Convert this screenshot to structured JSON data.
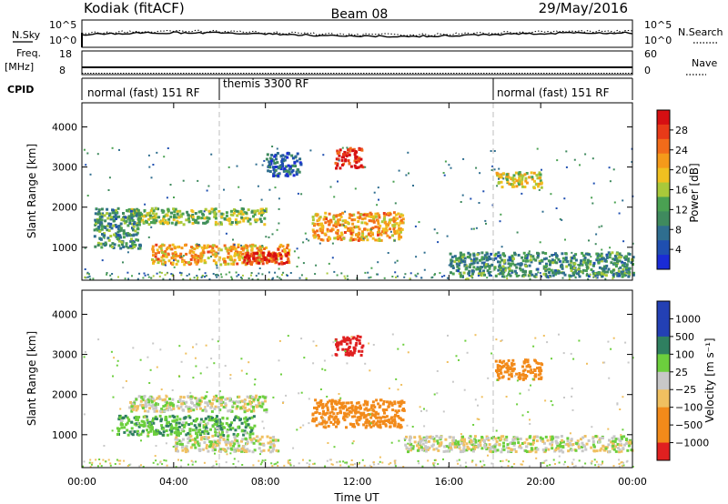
{
  "header": {
    "station": "Kodiak (fitACF)",
    "beam": "Beam 08",
    "date": "29/May/2016"
  },
  "noise_panel": {
    "left_label": "N.Sky",
    "left_ticks": [
      "10^5",
      "10^0"
    ],
    "right_ticks": [
      "10^5",
      "10^0"
    ],
    "right_label": "N.Search"
  },
  "freq_panel": {
    "left_label": "Freq.",
    "left_unit": "[MHz]",
    "left_ticks": [
      "18",
      "8"
    ],
    "right_ticks": [
      "60",
      "0"
    ],
    "right_label": "Nave"
  },
  "cpid_panel": {
    "label": "CPID",
    "segments": [
      "normal (fast) 151 RF",
      "themis 3300 RF",
      "normal (fast) 151 RF"
    ]
  },
  "power_panel": {
    "ylabel": "Slant Range [km]",
    "yticks": [
      "4000",
      "3000",
      "2000",
      "1000"
    ],
    "colorbar_label": "Power [dB]",
    "colorbar_ticks": [
      "28",
      "24",
      "20",
      "16",
      "12",
      "8",
      "4"
    ]
  },
  "velocity_panel": {
    "ylabel": "Slant Range [km]",
    "yticks": [
      "4000",
      "3000",
      "2000",
      "1000"
    ],
    "colorbar_label": "Velocity [m s⁻¹]",
    "colorbar_ticks": [
      "1000",
      "500",
      "100",
      "25",
      "−25",
      "−100",
      "−500",
      "−1000"
    ]
  },
  "xaxis": {
    "label": "Time UT",
    "ticks": [
      "00:00",
      "04:00",
      "08:00",
      "12:00",
      "16:00",
      "20:00",
      "00:00"
    ]
  },
  "chart_data": [
    {
      "type": "heatmap",
      "title": "Power",
      "xlabel": "Time UT",
      "ylabel": "Slant Range [km]",
      "xlim_hours": [
        0,
        24
      ],
      "ylim_km": [
        180,
        4600
      ],
      "colorbar_range_db": [
        0,
        30
      ],
      "mode_change_hours": [
        6,
        18
      ],
      "regions": [
        {
          "t": [
            3.0,
            9.0
          ],
          "range_km": [
            600,
            1100
          ],
          "value_db": 20
        },
        {
          "t": [
            7.0,
            9.0
          ],
          "range_km": [
            600,
            900
          ],
          "value_db": 28
        },
        {
          "t": [
            10.0,
            14.0
          ],
          "range_km": [
            1200,
            1900
          ],
          "value_db": 20
        },
        {
          "t": [
            2.0,
            8.0
          ],
          "range_km": [
            1600,
            2000
          ],
          "value_db": 14
        },
        {
          "t": [
            0.5,
            2.5
          ],
          "range_km": [
            1000,
            2000
          ],
          "value_db": 10
        },
        {
          "t": [
            18.0,
            20.0
          ],
          "range_km": [
            2500,
            2900
          ],
          "value_db": 16
        },
        {
          "t": [
            16.0,
            24.0
          ],
          "range_km": [
            300,
            900
          ],
          "value_db": 10
        },
        {
          "t": [
            8.0,
            9.5
          ],
          "range_km": [
            2800,
            3400
          ],
          "value_db": 6
        },
        {
          "t": [
            11.0,
            12.2
          ],
          "range_km": [
            3000,
            3500
          ],
          "value_db": 28
        }
      ]
    },
    {
      "type": "heatmap",
      "title": "Velocity",
      "xlabel": "Time UT",
      "ylabel": "Slant Range [km]",
      "xlim_hours": [
        0,
        24
      ],
      "ylim_km": [
        180,
        4600
      ],
      "colorbar_range_ms": [
        -1000,
        1000
      ],
      "mode_change_hours": [
        6,
        18
      ],
      "regions": [
        {
          "t": [
            1.5,
            7.5
          ],
          "range_km": [
            1000,
            1500
          ],
          "value_ms": 80
        },
        {
          "t": [
            4.0,
            8.5
          ],
          "range_km": [
            600,
            1000
          ],
          "value_ms": 0
        },
        {
          "t": [
            10.0,
            14.0
          ],
          "range_km": [
            1200,
            1900
          ],
          "value_ms": -200
        },
        {
          "t": [
            2.0,
            8.0
          ],
          "range_km": [
            1600,
            2000
          ],
          "value_ms": 0
        },
        {
          "t": [
            18.0,
            20.0
          ],
          "range_km": [
            2400,
            2900
          ],
          "value_ms": -300
        },
        {
          "t": [
            14.0,
            24.0
          ],
          "range_km": [
            600,
            1000
          ],
          "value_ms": 0
        },
        {
          "t": [
            11.0,
            12.2
          ],
          "range_km": [
            3000,
            3500
          ],
          "value_ms": -800
        }
      ]
    }
  ]
}
